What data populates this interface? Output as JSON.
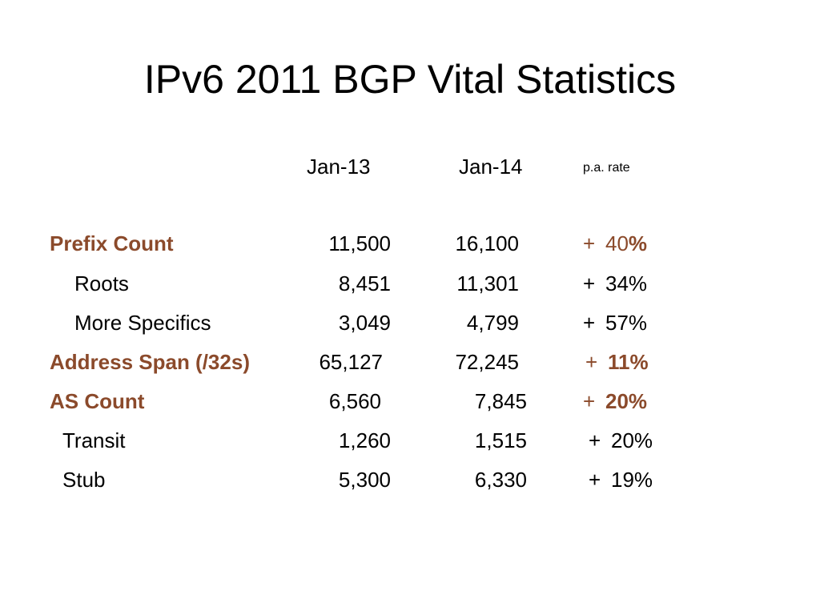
{
  "slide": {
    "title": "IPv6 2011 BGP Vital Statistics",
    "accent_color": "#8b4a2b"
  },
  "columns": {
    "col1": "Jan-13",
    "col2": "Jan-14",
    "rate": "p.a. rate"
  },
  "rows": [
    {
      "label": "Prefix Count",
      "jan13": "11,500",
      "jan14": "16,100",
      "sign": "+",
      "rate_a": "40",
      "rate_b": "%"
    },
    {
      "label": "Roots",
      "jan13": "8,451",
      "jan14": "11,301",
      "sign": "+",
      "rate": "34%"
    },
    {
      "label": "More Specifics",
      "jan13": "3,049",
      "jan14": "4,799",
      "sign": "+",
      "rate": "57%"
    },
    {
      "label": "Address Span (/32s)",
      "jan13": "65,127",
      "jan14": "72,245",
      "sign": "+",
      "rate": "11%"
    },
    {
      "label": "AS Count",
      "jan13": "6,560",
      "jan14": "7,845",
      "sign": "+",
      "rate": "20%"
    },
    {
      "label": "Transit",
      "jan13": "1,260",
      "jan14": "1,515",
      "sign": "+",
      "rate": "20%"
    },
    {
      "label": "Stub",
      "jan13": "5,300",
      "jan14": "6,330",
      "sign": "+",
      "rate": "19%"
    }
  ]
}
